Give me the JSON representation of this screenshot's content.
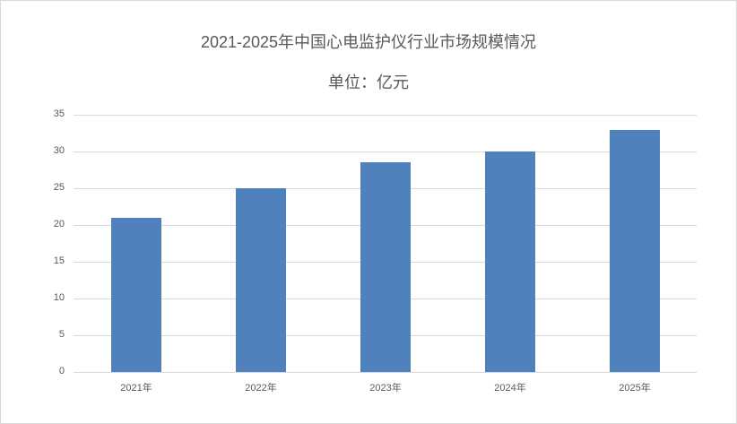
{
  "chart_data": {
    "type": "bar",
    "title": "2021-2025年中国心电监护仪行业市场规模情况",
    "subtitle": "单位：亿元",
    "categories": [
      "2021年",
      "2022年",
      "2023年",
      "2024年",
      "2025年"
    ],
    "values": [
      21.0,
      25.0,
      28.5,
      30.0,
      32.9
    ],
    "xlabel": "",
    "ylabel": "",
    "ylim": [
      0,
      35
    ],
    "yticks": [
      "0",
      "5",
      "10",
      "15",
      "20",
      "25",
      "30",
      "35"
    ],
    "grid": true,
    "legend": "none",
    "bar_color": "#4f81bd"
  }
}
